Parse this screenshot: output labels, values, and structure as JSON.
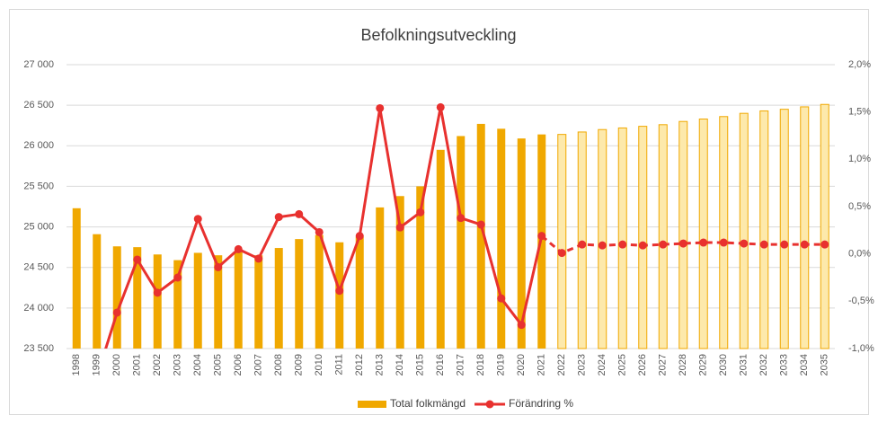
{
  "chart_data": {
    "type": "bar-line",
    "title": "Befolkningsutveckling",
    "categories": [
      "1998",
      "1999",
      "2000",
      "2001",
      "2002",
      "2003",
      "2004",
      "2005",
      "2006",
      "2007",
      "2008",
      "2009",
      "2010",
      "2011",
      "2012",
      "2013",
      "2014",
      "2015",
      "2016",
      "2017",
      "2018",
      "2019",
      "2020",
      "2021",
      "2022",
      "2023",
      "2024",
      "2025",
      "2026",
      "2027",
      "2028",
      "2029",
      "2030",
      "2031",
      "2032",
      "2033",
      "2034",
      "2035"
    ],
    "projection_start": "2022",
    "series": [
      {
        "name": "Total folkmängd",
        "type": "bar",
        "color": "#f0a800",
        "projection_fill": "#fde9ab",
        "values": [
          25230,
          24910,
          24760,
          24750,
          24660,
          24590,
          24680,
          24650,
          24700,
          24650,
          24740,
          24850,
          24900,
          24810,
          24880,
          25240,
          25380,
          25500,
          25950,
          26120,
          26270,
          26210,
          26090,
          26140,
          26140,
          26170,
          26200,
          26220,
          26240,
          26260,
          26300,
          26330,
          26360,
          26400,
          26430,
          26450,
          26480,
          26510
        ]
      },
      {
        "name": "Förändring %",
        "type": "line",
        "axis": "y2",
        "color": "#e8312f",
        "values": [
          null,
          -1.3,
          -0.62,
          -0.06,
          -0.41,
          -0.25,
          0.37,
          -0.14,
          0.05,
          -0.05,
          0.39,
          0.42,
          0.23,
          -0.39,
          0.19,
          1.54,
          0.28,
          0.44,
          1.55,
          0.38,
          0.31,
          -0.47,
          -0.75,
          0.19,
          0.01,
          0.1,
          0.09,
          0.1,
          0.09,
          0.1,
          0.11,
          0.12,
          0.12,
          0.11,
          0.1,
          0.1,
          0.1,
          0.1
        ]
      }
    ],
    "ylim": [
      23500,
      27000
    ],
    "yticks": [
      {
        "value": 23500,
        "label": "23 500"
      },
      {
        "value": 24000,
        "label": "24 000"
      },
      {
        "value": 24500,
        "label": "24 500"
      },
      {
        "value": 25000,
        "label": "25 000"
      },
      {
        "value": 25500,
        "label": "25 500"
      },
      {
        "value": 26000,
        "label": "26 000"
      },
      {
        "value": 26500,
        "label": "26 500"
      },
      {
        "value": 27000,
        "label": "27 000"
      }
    ],
    "y2lim": [
      -1,
      2
    ],
    "y2ticks": [
      {
        "value": -1,
        "label": "-1,0%"
      },
      {
        "value": -0.5,
        "label": "-0,5%"
      },
      {
        "value": 0,
        "label": "0,0%"
      },
      {
        "value": 0.5,
        "label": "0,5%"
      },
      {
        "value": 1,
        "label": "1,0%"
      },
      {
        "value": 1.5,
        "label": "1,5%"
      },
      {
        "value": 2,
        "label": "2,0%"
      }
    ],
    "grid": true,
    "legend": "bottom"
  }
}
